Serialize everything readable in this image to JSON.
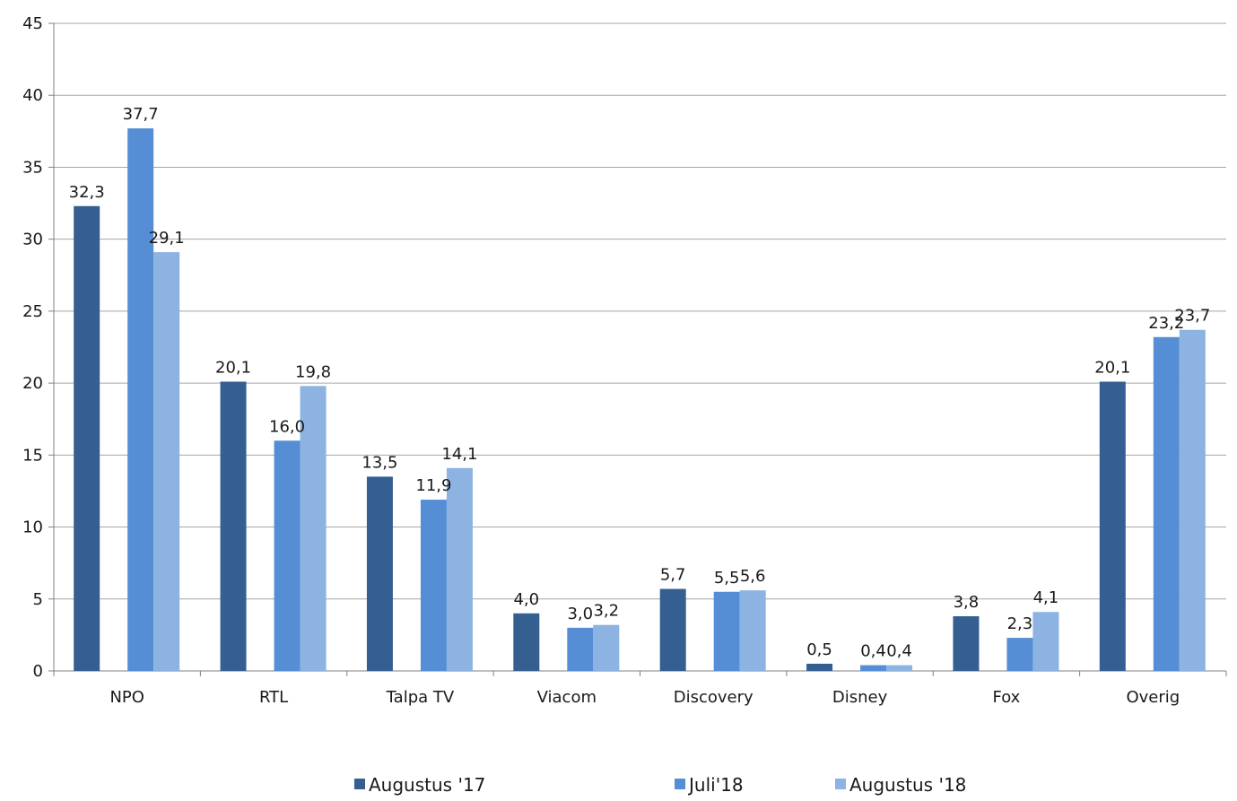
{
  "chart_data": {
    "type": "bar",
    "title": "",
    "xlabel": "",
    "ylabel": "",
    "ylim": [
      0,
      45
    ],
    "ytick_step": 5,
    "y_ticks": [
      "0",
      "5",
      "10",
      "15",
      "20",
      "25",
      "30",
      "35",
      "40",
      "45"
    ],
    "grid": true,
    "legend_position": "bottom",
    "categories": [
      "NPO",
      "RTL",
      "Talpa TV",
      "Viacom",
      "Discovery",
      "Disney",
      "Fox",
      "Overig"
    ],
    "series": [
      {
        "name": "Augustus '17",
        "color": "#365f91",
        "values": [
          32.3,
          20.1,
          13.5,
          4.0,
          5.7,
          0.5,
          3.8,
          20.1
        ],
        "labels": [
          "32,3",
          "20,1",
          "13,5",
          "4,0",
          "5,7",
          "0,5",
          "3,8",
          "20,1"
        ]
      },
      {
        "name": "Juli'18",
        "color": "#558ed5",
        "values": [
          37.7,
          16.0,
          11.9,
          3.0,
          5.5,
          0.4,
          2.3,
          23.2
        ],
        "labels": [
          "37,7",
          "16,0",
          "11,9",
          "3,0",
          "5,5",
          "0,4",
          "2,3",
          "23,2"
        ]
      },
      {
        "name": "Augustus '18",
        "color": "#8db3e2",
        "values": [
          29.1,
          19.8,
          14.1,
          3.2,
          5.6,
          0.4,
          4.1,
          23.7
        ],
        "labels": [
          "29,1",
          "19,8",
          "14,1",
          "3,2",
          "5,6",
          "0,4",
          "4,1",
          "23,7"
        ]
      }
    ]
  }
}
